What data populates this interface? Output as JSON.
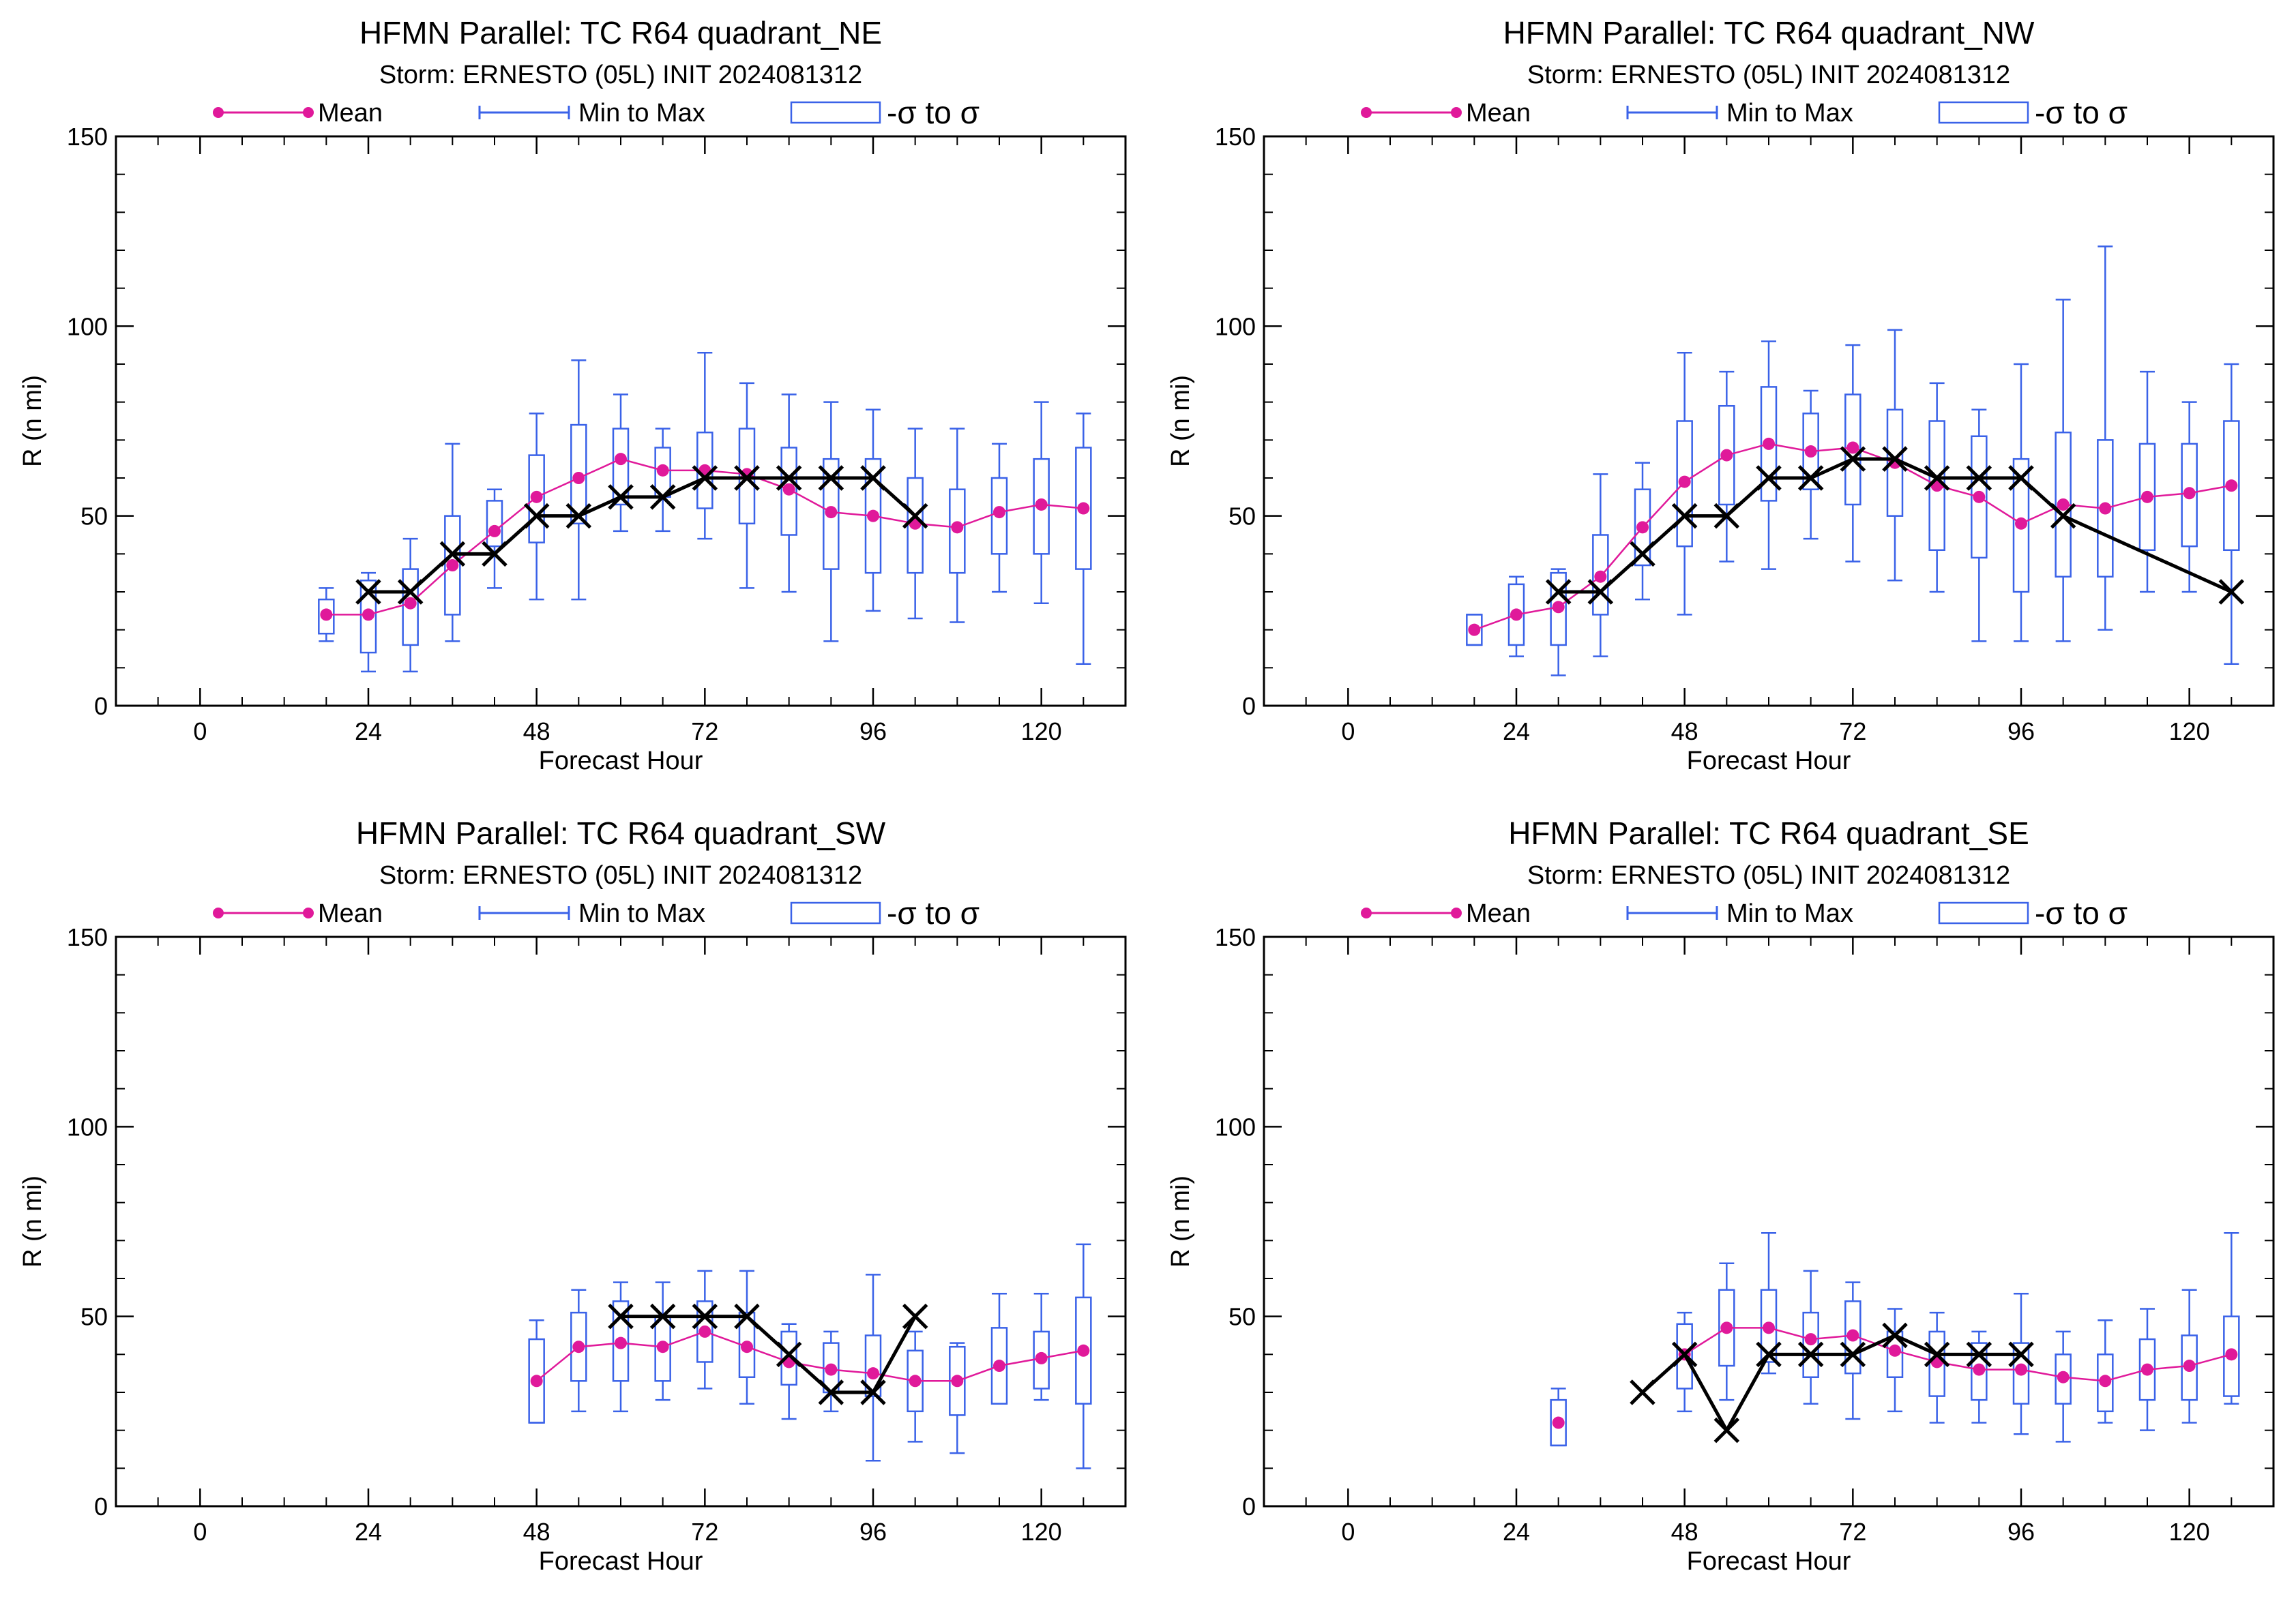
{
  "legend": {
    "mean_label": "Mean",
    "minmax_label": "Min to Max",
    "sigma_label": "-σ to σ"
  },
  "colors": {
    "mean": "#e0199a",
    "box": "#3a62e8",
    "best_track": "#000000"
  },
  "chart_data": [
    {
      "type": "box",
      "title": "HFMN Parallel: TC  R64 quadrant_NE",
      "subtitle": "Storm: ERNESTO (05L) INIT 2024081312",
      "xlabel": "Forecast Hour",
      "ylabel": "R (n mi)",
      "xlim": [
        -12,
        132
      ],
      "ylim": [
        0,
        150
      ],
      "xticks": [
        0,
        24,
        48,
        72,
        96,
        120
      ],
      "yticks": [
        0,
        50,
        100,
        150
      ],
      "boxes": [
        {
          "x": 18,
          "min": 17,
          "lo": 19,
          "hi": 28,
          "max": 31,
          "mean": 24
        },
        {
          "x": 24,
          "min": 9,
          "lo": 14,
          "hi": 33,
          "max": 35,
          "mean": 24
        },
        {
          "x": 30,
          "min": 9,
          "lo": 16,
          "hi": 36,
          "max": 44,
          "mean": 27
        },
        {
          "x": 36,
          "min": 17,
          "lo": 24,
          "hi": 50,
          "max": 69,
          "mean": 37
        },
        {
          "x": 42,
          "min": 31,
          "lo": 42,
          "hi": 54,
          "max": 57,
          "mean": 46
        },
        {
          "x": 48,
          "min": 28,
          "lo": 43,
          "hi": 66,
          "max": 77,
          "mean": 55
        },
        {
          "x": 54,
          "min": 28,
          "lo": 48,
          "hi": 74,
          "max": 91,
          "mean": 60
        },
        {
          "x": 60,
          "min": 46,
          "lo": 53,
          "hi": 73,
          "max": 82,
          "mean": 65
        },
        {
          "x": 66,
          "min": 46,
          "lo": 55,
          "hi": 68,
          "max": 73,
          "mean": 62
        },
        {
          "x": 72,
          "min": 44,
          "lo": 52,
          "hi": 72,
          "max": 93,
          "mean": 62
        },
        {
          "x": 78,
          "min": 31,
          "lo": 48,
          "hi": 73,
          "max": 85,
          "mean": 61
        },
        {
          "x": 84,
          "min": 30,
          "lo": 45,
          "hi": 68,
          "max": 82,
          "mean": 57
        },
        {
          "x": 90,
          "min": 17,
          "lo": 36,
          "hi": 65,
          "max": 80,
          "mean": 51
        },
        {
          "x": 96,
          "min": 25,
          "lo": 35,
          "hi": 65,
          "max": 78,
          "mean": 50
        },
        {
          "x": 102,
          "min": 23,
          "lo": 35,
          "hi": 60,
          "max": 73,
          "mean": 48
        },
        {
          "x": 108,
          "min": 22,
          "lo": 35,
          "hi": 57,
          "max": 73,
          "mean": 47
        },
        {
          "x": 114,
          "min": 30,
          "lo": 40,
          "hi": 60,
          "max": 69,
          "mean": 51
        },
        {
          "x": 120,
          "min": 27,
          "lo": 40,
          "hi": 65,
          "max": 80,
          "mean": 53
        },
        {
          "x": 126,
          "min": 11,
          "lo": 36,
          "hi": 68,
          "max": 77,
          "mean": 52
        }
      ],
      "best_track": [
        {
          "x": 24,
          "y": 30
        },
        {
          "x": 30,
          "y": 30
        },
        {
          "x": 36,
          "y": 40
        },
        {
          "x": 42,
          "y": 40
        },
        {
          "x": 48,
          "y": 50
        },
        {
          "x": 54,
          "y": 50
        },
        {
          "x": 60,
          "y": 55
        },
        {
          "x": 66,
          "y": 55
        },
        {
          "x": 72,
          "y": 60
        },
        {
          "x": 78,
          "y": 60
        },
        {
          "x": 84,
          "y": 60
        },
        {
          "x": 90,
          "y": 60
        },
        {
          "x": 96,
          "y": 60
        },
        {
          "x": 102,
          "y": 50
        }
      ]
    },
    {
      "type": "box",
      "title": "HFMN Parallel: TC  R64 quadrant_NW",
      "subtitle": "Storm: ERNESTO (05L) INIT 2024081312",
      "xlabel": "Forecast Hour",
      "ylabel": "R (n mi)",
      "xlim": [
        -12,
        132
      ],
      "ylim": [
        0,
        150
      ],
      "xticks": [
        0,
        24,
        48,
        72,
        96,
        120
      ],
      "yticks": [
        0,
        50,
        100,
        150
      ],
      "boxes": [
        {
          "x": 18,
          "min": 16,
          "lo": 16,
          "hi": 24,
          "max": 24,
          "mean": 20
        },
        {
          "x": 24,
          "min": 13,
          "lo": 16,
          "hi": 32,
          "max": 34,
          "mean": 24
        },
        {
          "x": 30,
          "min": 8,
          "lo": 16,
          "hi": 35,
          "max": 36,
          "mean": 26
        },
        {
          "x": 36,
          "min": 13,
          "lo": 24,
          "hi": 45,
          "max": 61,
          "mean": 34
        },
        {
          "x": 42,
          "min": 28,
          "lo": 37,
          "hi": 57,
          "max": 64,
          "mean": 47
        },
        {
          "x": 48,
          "min": 24,
          "lo": 42,
          "hi": 75,
          "max": 93,
          "mean": 59
        },
        {
          "x": 54,
          "min": 38,
          "lo": 53,
          "hi": 79,
          "max": 88,
          "mean": 66
        },
        {
          "x": 60,
          "min": 36,
          "lo": 54,
          "hi": 84,
          "max": 96,
          "mean": 69
        },
        {
          "x": 66,
          "min": 44,
          "lo": 57,
          "hi": 77,
          "max": 83,
          "mean": 67
        },
        {
          "x": 72,
          "min": 38,
          "lo": 53,
          "hi": 82,
          "max": 95,
          "mean": 68
        },
        {
          "x": 78,
          "min": 33,
          "lo": 50,
          "hi": 78,
          "max": 99,
          "mean": 64
        },
        {
          "x": 84,
          "min": 30,
          "lo": 41,
          "hi": 75,
          "max": 85,
          "mean": 58
        },
        {
          "x": 90,
          "min": 17,
          "lo": 39,
          "hi": 71,
          "max": 78,
          "mean": 55
        },
        {
          "x": 96,
          "min": 17,
          "lo": 30,
          "hi": 65,
          "max": 90,
          "mean": 48
        },
        {
          "x": 102,
          "min": 17,
          "lo": 34,
          "hi": 72,
          "max": 107,
          "mean": 53
        },
        {
          "x": 108,
          "min": 20,
          "lo": 34,
          "hi": 70,
          "max": 121,
          "mean": 52
        },
        {
          "x": 114,
          "min": 30,
          "lo": 41,
          "hi": 69,
          "max": 88,
          "mean": 55
        },
        {
          "x": 120,
          "min": 30,
          "lo": 42,
          "hi": 69,
          "max": 80,
          "mean": 56
        },
        {
          "x": 126,
          "min": 11,
          "lo": 41,
          "hi": 75,
          "max": 90,
          "mean": 58
        }
      ],
      "best_track": [
        {
          "x": 30,
          "y": 30
        },
        {
          "x": 36,
          "y": 30
        },
        {
          "x": 42,
          "y": 40
        },
        {
          "x": 48,
          "y": 50
        },
        {
          "x": 54,
          "y": 50
        },
        {
          "x": 60,
          "y": 60
        },
        {
          "x": 66,
          "y": 60
        },
        {
          "x": 72,
          "y": 65
        },
        {
          "x": 78,
          "y": 65
        },
        {
          "x": 84,
          "y": 60
        },
        {
          "x": 90,
          "y": 60
        },
        {
          "x": 96,
          "y": 60
        },
        {
          "x": 102,
          "y": 50
        },
        {
          "x": 126,
          "y": 30
        }
      ]
    },
    {
      "type": "box",
      "title": "HFMN Parallel: TC  R64 quadrant_SW",
      "subtitle": "Storm: ERNESTO (05L) INIT 2024081312",
      "xlabel": "Forecast Hour",
      "ylabel": "R (n mi)",
      "xlim": [
        -12,
        132
      ],
      "ylim": [
        0,
        150
      ],
      "xticks": [
        0,
        24,
        48,
        72,
        96,
        120
      ],
      "yticks": [
        0,
        50,
        100,
        150
      ],
      "boxes": [
        {
          "x": 48,
          "min": 22,
          "lo": 22,
          "hi": 44,
          "max": 49,
          "mean": 33
        },
        {
          "x": 54,
          "min": 25,
          "lo": 33,
          "hi": 51,
          "max": 57,
          "mean": 42
        },
        {
          "x": 60,
          "min": 25,
          "lo": 33,
          "hi": 54,
          "max": 59,
          "mean": 43
        },
        {
          "x": 66,
          "min": 28,
          "lo": 33,
          "hi": 50,
          "max": 59,
          "mean": 42
        },
        {
          "x": 72,
          "min": 31,
          "lo": 38,
          "hi": 54,
          "max": 62,
          "mean": 46
        },
        {
          "x": 78,
          "min": 27,
          "lo": 34,
          "hi": 51,
          "max": 62,
          "mean": 42
        },
        {
          "x": 84,
          "min": 23,
          "lo": 32,
          "hi": 46,
          "max": 48,
          "mean": 38
        },
        {
          "x": 90,
          "min": 25,
          "lo": 30,
          "hi": 43,
          "max": 46,
          "mean": 36
        },
        {
          "x": 96,
          "min": 12,
          "lo": 29,
          "hi": 45,
          "max": 61,
          "mean": 35
        },
        {
          "x": 102,
          "min": 17,
          "lo": 25,
          "hi": 41,
          "max": 46,
          "mean": 33
        },
        {
          "x": 108,
          "min": 14,
          "lo": 24,
          "hi": 42,
          "max": 43,
          "mean": 33
        },
        {
          "x": 114,
          "min": 27,
          "lo": 27,
          "hi": 47,
          "max": 56,
          "mean": 37
        },
        {
          "x": 120,
          "min": 28,
          "lo": 31,
          "hi": 46,
          "max": 56,
          "mean": 39
        },
        {
          "x": 126,
          "min": 10,
          "lo": 27,
          "hi": 55,
          "max": 69,
          "mean": 41
        }
      ],
      "best_track": [
        {
          "x": 60,
          "y": 50
        },
        {
          "x": 66,
          "y": 50
        },
        {
          "x": 72,
          "y": 50
        },
        {
          "x": 78,
          "y": 50
        },
        {
          "x": 84,
          "y": 40
        },
        {
          "x": 90,
          "y": 30
        },
        {
          "x": 96,
          "y": 30
        },
        {
          "x": 102,
          "y": 50
        }
      ]
    },
    {
      "type": "box",
      "title": "HFMN Parallel: TC  R64 quadrant_SE",
      "subtitle": "Storm: ERNESTO (05L) INIT 2024081312",
      "xlabel": "Forecast Hour",
      "ylabel": "R (n mi)",
      "xlim": [
        -12,
        132
      ],
      "ylim": [
        0,
        150
      ],
      "xticks": [
        0,
        24,
        48,
        72,
        96,
        120
      ],
      "yticks": [
        0,
        50,
        100,
        150
      ],
      "boxes": [
        {
          "x": 30,
          "min": 16,
          "lo": 16,
          "hi": 28,
          "max": 31,
          "mean": 22
        },
        {
          "x": 48,
          "min": 25,
          "lo": 31,
          "hi": 48,
          "max": 51,
          "mean": 40
        },
        {
          "x": 54,
          "min": 28,
          "lo": 37,
          "hi": 57,
          "max": 64,
          "mean": 47
        },
        {
          "x": 60,
          "min": 35,
          "lo": 38,
          "hi": 57,
          "max": 72,
          "mean": 47
        },
        {
          "x": 66,
          "min": 27,
          "lo": 34,
          "hi": 51,
          "max": 62,
          "mean": 44
        },
        {
          "x": 72,
          "min": 23,
          "lo": 35,
          "hi": 54,
          "max": 59,
          "mean": 45
        },
        {
          "x": 78,
          "min": 25,
          "lo": 34,
          "hi": 46,
          "max": 52,
          "mean": 41
        },
        {
          "x": 84,
          "min": 22,
          "lo": 29,
          "hi": 46,
          "max": 51,
          "mean": 38
        },
        {
          "x": 90,
          "min": 22,
          "lo": 28,
          "hi": 43,
          "max": 46,
          "mean": 36
        },
        {
          "x": 96,
          "min": 19,
          "lo": 27,
          "hi": 43,
          "max": 56,
          "mean": 36
        },
        {
          "x": 102,
          "min": 17,
          "lo": 27,
          "hi": 40,
          "max": 46,
          "mean": 34
        },
        {
          "x": 108,
          "min": 22,
          "lo": 25,
          "hi": 40,
          "max": 49,
          "mean": 33
        },
        {
          "x": 114,
          "min": 20,
          "lo": 28,
          "hi": 44,
          "max": 52,
          "mean": 36
        },
        {
          "x": 120,
          "min": 22,
          "lo": 28,
          "hi": 45,
          "max": 57,
          "mean": 37
        },
        {
          "x": 126,
          "min": 27,
          "lo": 29,
          "hi": 50,
          "max": 72,
          "mean": 40
        }
      ],
      "best_track": [
        {
          "x": 42,
          "y": 30
        },
        {
          "x": 48,
          "y": 40
        },
        {
          "x": 54,
          "y": 20
        },
        {
          "x": 60,
          "y": 40
        },
        {
          "x": 66,
          "y": 40
        },
        {
          "x": 72,
          "y": 40
        },
        {
          "x": 78,
          "y": 45
        },
        {
          "x": 84,
          "y": 40
        },
        {
          "x": 90,
          "y": 40
        },
        {
          "x": 96,
          "y": 40
        }
      ]
    }
  ]
}
